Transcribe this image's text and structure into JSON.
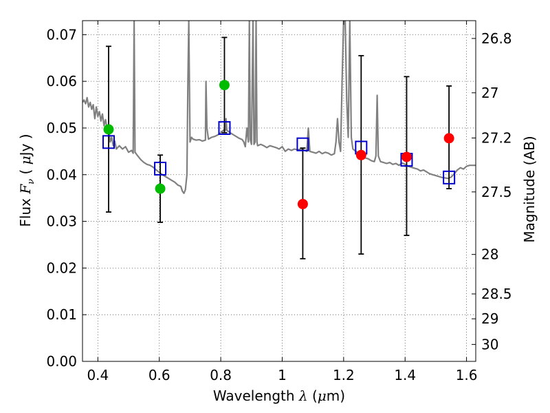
{
  "chart_data": {
    "type": "scatter",
    "xlabel_prefix": "Wavelength",
    "xlabel_symbol": "λ",
    "xlabel_unit_open": " (",
    "xlabel_unit_mu": "μ",
    "xlabel_unit_close": "m)",
    "ylabel_prefix": "Flux",
    "ylabel_symbol": "F",
    "ylabel_sub": "ν",
    "ylabel_unit_open": "( ",
    "ylabel_unit_mu": "μ",
    "ylabel_unit_close": "Jy )",
    "y2label": "Magnitude (AB)",
    "xlim": [
      0.35,
      1.63
    ],
    "ylim": [
      0.0,
      0.073
    ],
    "grid": true,
    "x_ticks": [
      {
        "v": 0.4,
        "label": "0.4"
      },
      {
        "v": 0.6,
        "label": "0.6"
      },
      {
        "v": 0.8,
        "label": "0.8"
      },
      {
        "v": 1.0,
        "label": "1"
      },
      {
        "v": 1.2,
        "label": "1.2"
      },
      {
        "v": 1.4,
        "label": "1.4"
      },
      {
        "v": 1.6,
        "label": "1.6"
      }
    ],
    "y_ticks": [
      {
        "v": 0.0,
        "label": "0.00"
      },
      {
        "v": 0.01,
        "label": "0.01"
      },
      {
        "v": 0.02,
        "label": "0.02"
      },
      {
        "v": 0.03,
        "label": "0.03"
      },
      {
        "v": 0.04,
        "label": "0.04"
      },
      {
        "v": 0.05,
        "label": "0.05"
      },
      {
        "v": 0.06,
        "label": "0.06"
      },
      {
        "v": 0.07,
        "label": "0.07"
      }
    ],
    "y2_ticks": [
      {
        "mag": 26.8,
        "label": "26.8"
      },
      {
        "mag": 27.0,
        "label": "27"
      },
      {
        "mag": 27.2,
        "label": "27.2"
      },
      {
        "mag": 27.5,
        "label": "27.5"
      },
      {
        "mag": 28.0,
        "label": "28"
      },
      {
        "mag": 28.5,
        "label": "28.5"
      },
      {
        "mag": 29.0,
        "label": "29"
      },
      {
        "mag": 30.0,
        "label": "30"
      }
    ],
    "colors": {
      "model": "#808080",
      "green": "#00bb00",
      "red": "#ff0000",
      "model_box": "#0000cc",
      "errorbar": "#000000",
      "grid": "#555555"
    },
    "model_spectrum": [
      [
        0.35,
        0.0555
      ],
      [
        0.355,
        0.056
      ],
      [
        0.36,
        0.0552
      ],
      [
        0.365,
        0.0565
      ],
      [
        0.37,
        0.0545
      ],
      [
        0.375,
        0.0555
      ],
      [
        0.38,
        0.054
      ],
      [
        0.385,
        0.055
      ],
      [
        0.39,
        0.052
      ],
      [
        0.395,
        0.0545
      ],
      [
        0.4,
        0.0525
      ],
      [
        0.405,
        0.0535
      ],
      [
        0.41,
        0.0515
      ],
      [
        0.415,
        0.053
      ],
      [
        0.42,
        0.0505
      ],
      [
        0.425,
        0.0518
      ],
      [
        0.43,
        0.0498
      ],
      [
        0.435,
        0.0505
      ],
      [
        0.44,
        0.047
      ],
      [
        0.445,
        0.048
      ],
      [
        0.45,
        0.0462
      ],
      [
        0.455,
        0.0472
      ],
      [
        0.46,
        0.0455
      ],
      [
        0.47,
        0.0462
      ],
      [
        0.48,
        0.0455
      ],
      [
        0.49,
        0.046
      ],
      [
        0.5,
        0.0448
      ],
      [
        0.51,
        0.0452
      ],
      [
        0.515,
        0.0446
      ],
      [
        0.518,
        0.073
      ],
      [
        0.521,
        0.0448
      ],
      [
        0.53,
        0.044
      ],
      [
        0.54,
        0.0432
      ],
      [
        0.55,
        0.0426
      ],
      [
        0.56,
        0.0422
      ],
      [
        0.57,
        0.042
      ],
      [
        0.58,
        0.0416
      ],
      [
        0.59,
        0.041
      ],
      [
        0.6,
        0.0405
      ],
      [
        0.61,
        0.04
      ],
      [
        0.62,
        0.0396
      ],
      [
        0.63,
        0.0392
      ],
      [
        0.64,
        0.0388
      ],
      [
        0.65,
        0.0384
      ],
      [
        0.66,
        0.0378
      ],
      [
        0.67,
        0.0375
      ],
      [
        0.675,
        0.0365
      ],
      [
        0.68,
        0.036
      ],
      [
        0.685,
        0.0368
      ],
      [
        0.69,
        0.04
      ],
      [
        0.693,
        0.06
      ],
      [
        0.696,
        0.073
      ],
      [
        0.7,
        0.047
      ],
      [
        0.705,
        0.048
      ],
      [
        0.71,
        0.0476
      ],
      [
        0.72,
        0.0474
      ],
      [
        0.73,
        0.0475
      ],
      [
        0.74,
        0.0472
      ],
      [
        0.75,
        0.0474
      ],
      [
        0.752,
        0.06
      ],
      [
        0.755,
        0.05
      ],
      [
        0.76,
        0.0476
      ],
      [
        0.77,
        0.048
      ],
      [
        0.78,
        0.0482
      ],
      [
        0.79,
        0.0485
      ],
      [
        0.8,
        0.049
      ],
      [
        0.81,
        0.0496
      ],
      [
        0.815,
        0.0495
      ],
      [
        0.817,
        0.052
      ],
      [
        0.82,
        0.0495
      ],
      [
        0.83,
        0.049
      ],
      [
        0.84,
        0.0486
      ],
      [
        0.85,
        0.0482
      ],
      [
        0.86,
        0.0478
      ],
      [
        0.87,
        0.0475
      ],
      [
        0.875,
        0.047
      ],
      [
        0.88,
        0.046
      ],
      [
        0.885,
        0.05
      ],
      [
        0.89,
        0.047
      ],
      [
        0.893,
        0.073
      ],
      [
        0.896,
        0.0475
      ],
      [
        0.9,
        0.0465
      ],
      [
        0.905,
        0.073
      ],
      [
        0.908,
        0.0465
      ],
      [
        0.912,
        0.047
      ],
      [
        0.915,
        0.073
      ],
      [
        0.918,
        0.047
      ],
      [
        0.92,
        0.0462
      ],
      [
        0.93,
        0.0465
      ],
      [
        0.94,
        0.0462
      ],
      [
        0.95,
        0.0458
      ],
      [
        0.96,
        0.0462
      ],
      [
        0.97,
        0.046
      ],
      [
        0.98,
        0.0458
      ],
      [
        0.99,
        0.0455
      ],
      [
        1.0,
        0.046
      ],
      [
        1.01,
        0.045
      ],
      [
        1.02,
        0.0455
      ],
      [
        1.03,
        0.0452
      ],
      [
        1.04,
        0.0455
      ],
      [
        1.05,
        0.0453
      ],
      [
        1.06,
        0.0455
      ],
      [
        1.07,
        0.0453
      ],
      [
        1.08,
        0.045
      ],
      [
        1.085,
        0.05
      ],
      [
        1.09,
        0.045
      ],
      [
        1.1,
        0.0448
      ],
      [
        1.11,
        0.0446
      ],
      [
        1.12,
        0.045
      ],
      [
        1.13,
        0.0445
      ],
      [
        1.14,
        0.0448
      ],
      [
        1.15,
        0.0446
      ],
      [
        1.16,
        0.0442
      ],
      [
        1.17,
        0.0445
      ],
      [
        1.175,
        0.047
      ],
      [
        1.18,
        0.052
      ],
      [
        1.185,
        0.047
      ],
      [
        1.19,
        0.045
      ],
      [
        1.195,
        0.06
      ],
      [
        1.2,
        0.073
      ],
      [
        1.205,
        0.073
      ],
      [
        1.21,
        0.056
      ],
      [
        1.215,
        0.048
      ],
      [
        1.22,
        0.073
      ],
      [
        1.225,
        0.048
      ],
      [
        1.23,
        0.0455
      ],
      [
        1.24,
        0.045
      ],
      [
        1.25,
        0.0446
      ],
      [
        1.26,
        0.044
      ],
      [
        1.27,
        0.0436
      ],
      [
        1.28,
        0.0434
      ],
      [
        1.29,
        0.043
      ],
      [
        1.3,
        0.0428
      ],
      [
        1.305,
        0.044
      ],
      [
        1.309,
        0.057
      ],
      [
        1.313,
        0.044
      ],
      [
        1.32,
        0.0428
      ],
      [
        1.33,
        0.0426
      ],
      [
        1.34,
        0.0424
      ],
      [
        1.35,
        0.0426
      ],
      [
        1.36,
        0.0422
      ],
      [
        1.37,
        0.0424
      ],
      [
        1.38,
        0.042
      ],
      [
        1.39,
        0.0425
      ],
      [
        1.4,
        0.0422
      ],
      [
        1.41,
        0.0418
      ],
      [
        1.42,
        0.0416
      ],
      [
        1.43,
        0.0414
      ],
      [
        1.44,
        0.0412
      ],
      [
        1.45,
        0.0408
      ],
      [
        1.46,
        0.041
      ],
      [
        1.47,
        0.0406
      ],
      [
        1.48,
        0.0402
      ],
      [
        1.49,
        0.04
      ],
      [
        1.5,
        0.0398
      ],
      [
        1.51,
        0.0396
      ],
      [
        1.52,
        0.0394
      ],
      [
        1.53,
        0.0393
      ],
      [
        1.54,
        0.0392
      ],
      [
        1.55,
        0.0395
      ],
      [
        1.56,
        0.0402
      ],
      [
        1.57,
        0.041
      ],
      [
        1.58,
        0.0415
      ],
      [
        1.59,
        0.0412
      ],
      [
        1.6,
        0.0418
      ],
      [
        1.61,
        0.042
      ],
      [
        1.62,
        0.042
      ],
      [
        1.63,
        0.042
      ]
    ],
    "observed_points": [
      {
        "x": 0.435,
        "y": 0.0497,
        "color": "green",
        "err_lo": 0.032,
        "err_hi": 0.0675
      },
      {
        "x": 0.603,
        "y": 0.037,
        "color": "green",
        "err_lo": 0.0298,
        "err_hi": 0.0442
      },
      {
        "x": 0.812,
        "y": 0.0592,
        "color": "green",
        "err_lo": 0.049,
        "err_hi": 0.0694
      },
      {
        "x": 1.067,
        "y": 0.0337,
        "color": "red",
        "err_lo": 0.022,
        "err_hi": 0.0457
      },
      {
        "x": 1.257,
        "y": 0.0442,
        "color": "red",
        "err_lo": 0.023,
        "err_hi": 0.0655
      },
      {
        "x": 1.405,
        "y": 0.0438,
        "color": "red",
        "err_lo": 0.027,
        "err_hi": 0.061
      },
      {
        "x": 1.543,
        "y": 0.0478,
        "color": "red",
        "err_lo": 0.037,
        "err_hi": 0.059
      }
    ],
    "model_boxes": [
      {
        "x": 0.435,
        "y": 0.047
      },
      {
        "x": 0.603,
        "y": 0.0413
      },
      {
        "x": 0.812,
        "y": 0.05
      },
      {
        "x": 1.067,
        "y": 0.0465
      },
      {
        "x": 1.257,
        "y": 0.0458
      },
      {
        "x": 1.405,
        "y": 0.0432
      },
      {
        "x": 1.543,
        "y": 0.0394
      }
    ]
  }
}
